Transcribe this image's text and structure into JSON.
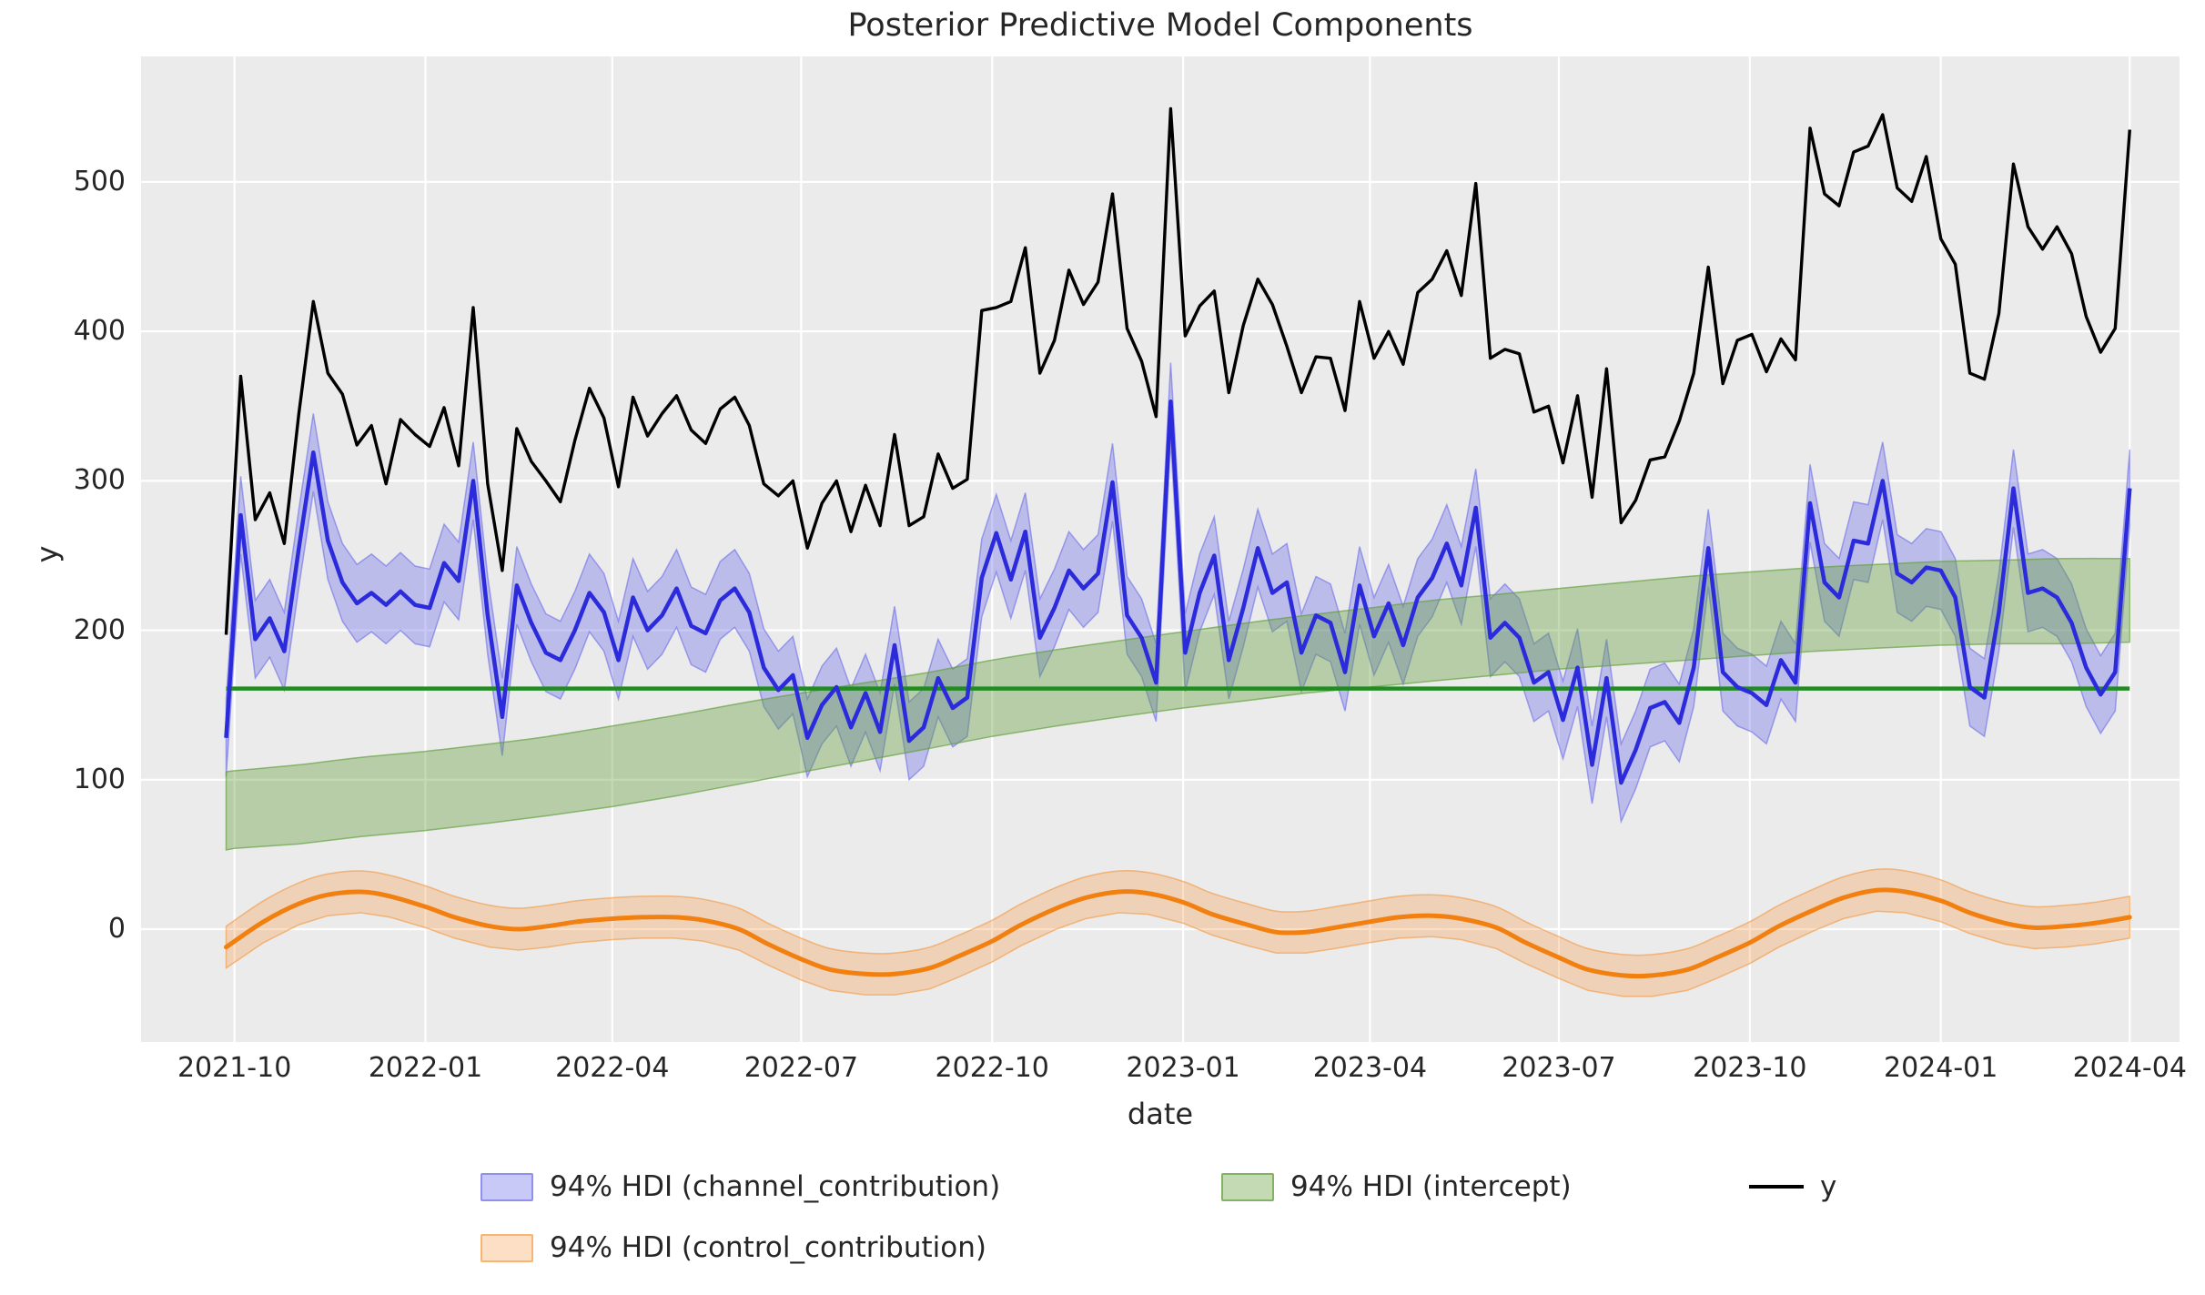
{
  "title": "Posterior Predictive Model Components",
  "axes": {
    "xlabel": "date",
    "ylabel": "y",
    "x_tick_labels": [
      "2021-10",
      "2022-01",
      "2022-04",
      "2022-07",
      "2022-10",
      "2023-01",
      "2023-04",
      "2023-07",
      "2023-10",
      "2024-01",
      "2024-04"
    ],
    "y_tick_labels": [
      "0",
      "100",
      "200",
      "300",
      "400",
      "500"
    ]
  },
  "legend": {
    "channel": "94% HDI (channel_contribution)",
    "control": "94% HDI (control_contribution)",
    "intercept": "94% HDI (intercept)",
    "y": "y"
  },
  "colors": {
    "figure_bg": "#ffffff",
    "axes_bg": "#ebebeb",
    "grid": "#ffffff",
    "text": "#262626",
    "y_line": "#000000",
    "channel_line": "#2b2bdb",
    "channel_band_fill": "rgba(99,99,233,0.35)",
    "channel_band_edge": "rgba(99,99,233,0.55)",
    "intercept_band_fill": "rgba(96,158,58,0.38)",
    "intercept_band_edge": "rgba(96,158,58,0.65)",
    "intercept_line": "#228b22",
    "control_line": "#f28011",
    "control_band_fill": "rgba(245,150,60,0.30)",
    "control_band_edge": "rgba(245,150,60,0.60)"
  },
  "chart_data": {
    "type": "line",
    "title": "Posterior Predictive Model Components",
    "xlabel": "date",
    "ylabel": "y",
    "grid": true,
    "legend_position": "below",
    "xlim": [
      "2021-08-17",
      "2024-04-25"
    ],
    "ylim": [
      -75.5,
      584
    ],
    "x_ticks": [
      "2021-10-01",
      "2022-01-01",
      "2022-04-01",
      "2022-07-01",
      "2022-10-01",
      "2023-01-01",
      "2023-04-01",
      "2023-07-01",
      "2023-10-01",
      "2024-01-01",
      "2024-04-01"
    ],
    "y_ticks": [
      0,
      100,
      200,
      300,
      400,
      500
    ],
    "series": {
      "y": {
        "name": "y",
        "x_start": "2021-09-27",
        "x_step_days": 7,
        "n": 132,
        "values": [
          197,
          370,
          274,
          292,
          258,
          345,
          420,
          372,
          358,
          324,
          337,
          298,
          341,
          331,
          323,
          349,
          310,
          416,
          298,
          240,
          335,
          313,
          300,
          286,
          327,
          362,
          342,
          296,
          356,
          330,
          345,
          357,
          334,
          325,
          348,
          356,
          337,
          298,
          290,
          300,
          255,
          285,
          300,
          266,
          297,
          270,
          331,
          270,
          276,
          318,
          295,
          301,
          414,
          416,
          420,
          456,
          372,
          394,
          441,
          418,
          433,
          492,
          402,
          380,
          343,
          549,
          397,
          417,
          427,
          359,
          404,
          435,
          418,
          390,
          359,
          383,
          382,
          347,
          420,
          382,
          400,
          378,
          426,
          435,
          454,
          424,
          499,
          382,
          388,
          385,
          346,
          350,
          312,
          357,
          289,
          375,
          272,
          287,
          314,
          316,
          340,
          372,
          443,
          365,
          394,
          398,
          373,
          395,
          381,
          536,
          492,
          484,
          520,
          524,
          545,
          496,
          487,
          517,
          462,
          445,
          372,
          368,
          412,
          512,
          470,
          455,
          470,
          452,
          410,
          386,
          402,
          535
        ]
      },
      "channel_contribution": {
        "name": "channel_contribution",
        "x_start": "2021-09-27",
        "x_step_days": 7,
        "n": 132,
        "hdi_half_width": 26,
        "mean": [
          128,
          277,
          194,
          208,
          186,
          255,
          319,
          260,
          232,
          218,
          225,
          217,
          226,
          217,
          215,
          245,
          233,
          300,
          210,
          142,
          230,
          205,
          185,
          180,
          200,
          225,
          212,
          180,
          222,
          200,
          210,
          228,
          203,
          198,
          220,
          228,
          212,
          175,
          160,
          170,
          128,
          150,
          162,
          135,
          158,
          132,
          190,
          126,
          135,
          168,
          148,
          155,
          235,
          265,
          234,
          266,
          195,
          215,
          240,
          228,
          238,
          299,
          210,
          195,
          165,
          353,
          185,
          225,
          250,
          180,
          215,
          255,
          225,
          232,
          185,
          210,
          205,
          172,
          230,
          196,
          218,
          190,
          222,
          235,
          258,
          230,
          282,
          195,
          205,
          195,
          165,
          172,
          140,
          175,
          110,
          168,
          98,
          120,
          148,
          152,
          138,
          175,
          255,
          172,
          162,
          158,
          150,
          180,
          165,
          285,
          232,
          222,
          260,
          258,
          300,
          238,
          232,
          242,
          240,
          222,
          162,
          155,
          212,
          295,
          225,
          228,
          222,
          205,
          175,
          157,
          172,
          295
        ]
      },
      "intercept": {
        "name": "intercept",
        "line_value": 161,
        "x": [
          "2021-09-27",
          "2021-10-01",
          "2021-11-01",
          "2021-12-01",
          "2022-01-01",
          "2022-02-01",
          "2022-03-01",
          "2022-04-01",
          "2022-05-01",
          "2022-06-01",
          "2022-07-01",
          "2022-08-01",
          "2022-09-01",
          "2022-10-01",
          "2022-11-01",
          "2022-12-01",
          "2023-01-01",
          "2023-02-01",
          "2023-03-01",
          "2023-04-01",
          "2023-05-01",
          "2023-06-01",
          "2023-07-01",
          "2023-08-01",
          "2023-09-01",
          "2023-10-01",
          "2023-11-01",
          "2023-12-01",
          "2024-01-01",
          "2024-02-01",
          "2024-03-01",
          "2024-04-01"
        ],
        "lower": [
          53,
          54,
          57,
          62,
          66,
          71,
          76,
          82,
          89,
          97,
          105,
          113,
          121,
          129,
          136,
          142,
          148,
          153,
          158,
          162,
          166,
          170,
          174,
          177,
          180,
          183,
          186,
          188,
          190,
          191,
          191,
          192
        ],
        "upper": [
          105,
          106,
          110,
          115,
          119,
          124,
          129,
          136,
          143,
          151,
          158,
          165,
          172,
          180,
          187,
          193,
          199,
          205,
          210,
          215,
          220,
          224,
          228,
          232,
          236,
          239,
          242,
          244,
          246,
          247,
          248,
          248
        ]
      },
      "control_contribution": {
        "name": "control_contribution",
        "hdi_half_width": 14,
        "x": [
          "2021-09-27",
          "2021-10-15",
          "2021-11-01",
          "2021-11-15",
          "2021-12-01",
          "2021-12-15",
          "2022-01-01",
          "2022-01-15",
          "2022-02-01",
          "2022-02-15",
          "2022-03-01",
          "2022-03-15",
          "2022-04-01",
          "2022-04-15",
          "2022-05-01",
          "2022-05-15",
          "2022-06-01",
          "2022-06-15",
          "2022-07-01",
          "2022-07-15",
          "2022-08-01",
          "2022-08-15",
          "2022-09-01",
          "2022-09-15",
          "2022-10-01",
          "2022-10-15",
          "2022-11-01",
          "2022-11-15",
          "2022-12-01",
          "2022-12-15",
          "2023-01-01",
          "2023-01-15",
          "2023-02-01",
          "2023-02-15",
          "2023-03-01",
          "2023-03-15",
          "2023-04-01",
          "2023-04-15",
          "2023-05-01",
          "2023-05-15",
          "2023-06-01",
          "2023-06-15",
          "2023-07-01",
          "2023-07-15",
          "2023-08-01",
          "2023-08-15",
          "2023-09-01",
          "2023-09-15",
          "2023-10-01",
          "2023-10-15",
          "2023-11-01",
          "2023-11-15",
          "2023-12-01",
          "2023-12-15",
          "2024-01-01",
          "2024-01-15",
          "2024-02-01",
          "2024-02-15",
          "2024-03-01",
          "2024-03-15",
          "2024-04-01"
        ],
        "mean": [
          -12,
          5,
          17,
          23,
          25,
          22,
          15,
          8,
          2,
          0,
          2,
          5,
          7,
          8,
          8,
          6,
          0,
          -10,
          -20,
          -27,
          -30,
          -30,
          -26,
          -18,
          -8,
          3,
          14,
          21,
          25,
          24,
          18,
          10,
          3,
          -2,
          -2,
          1,
          5,
          8,
          9,
          7,
          1,
          -9,
          -19,
          -27,
          -31,
          -31,
          -27,
          -19,
          -9,
          2,
          13,
          21,
          26,
          25,
          19,
          11,
          4,
          1,
          2,
          4,
          8
        ]
      }
    }
  }
}
